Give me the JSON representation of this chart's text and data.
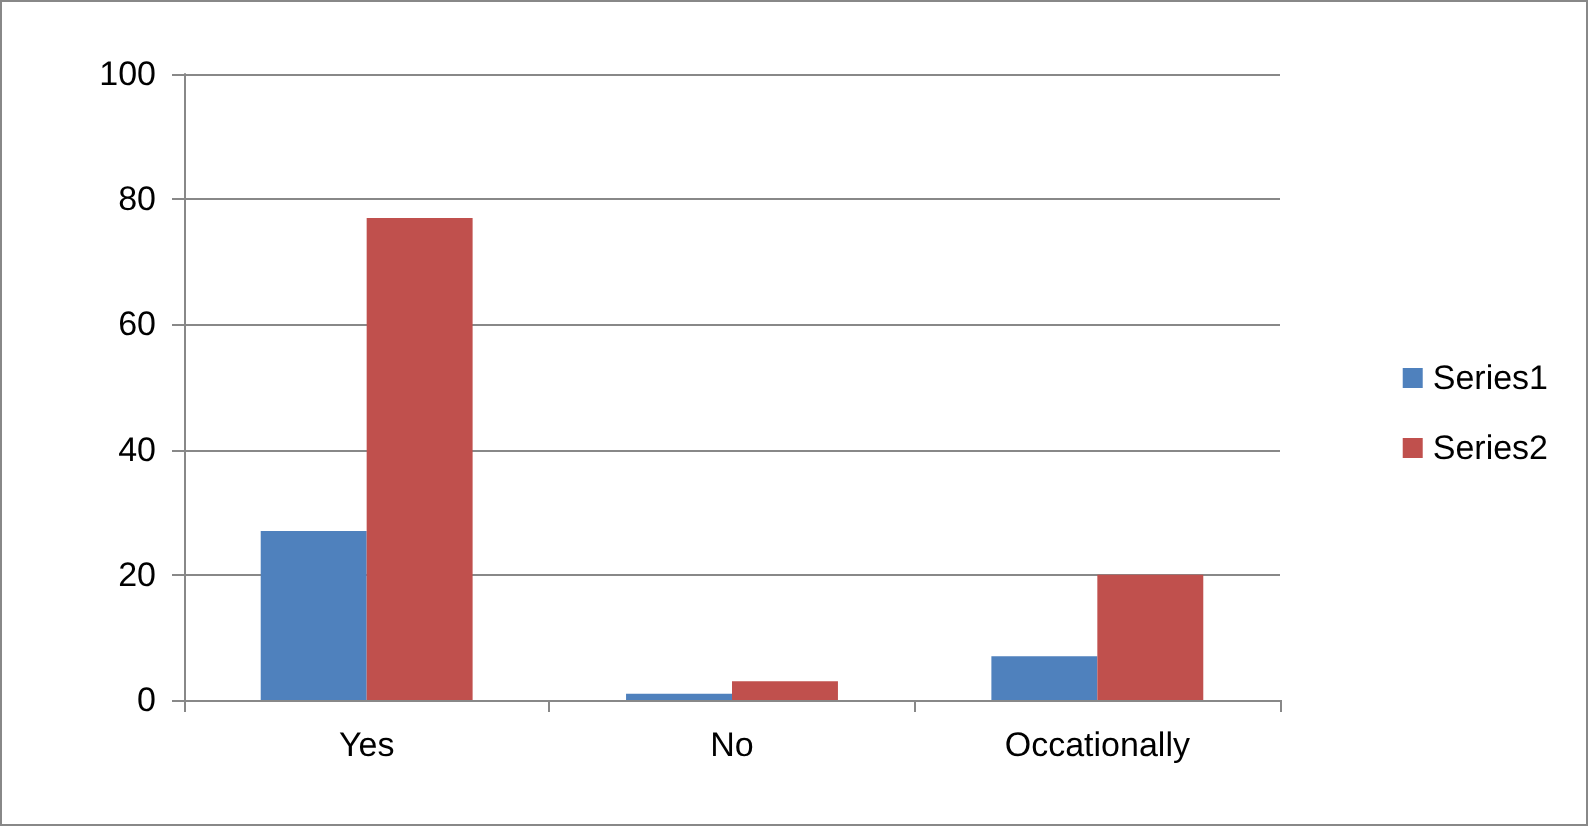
{
  "chart_data": {
    "type": "bar",
    "categories": [
      "Yes",
      "No",
      "Occationally"
    ],
    "series": [
      {
        "name": "Series1",
        "color": "#4f81bd",
        "values": [
          27,
          1,
          7
        ]
      },
      {
        "name": "Series2",
        "color": "#c0504d",
        "values": [
          77,
          3,
          20
        ]
      }
    ],
    "ylim": [
      0,
      100
    ],
    "yticks": [
      0,
      20,
      40,
      60,
      80,
      100
    ],
    "grid": "y",
    "legend": "right"
  }
}
